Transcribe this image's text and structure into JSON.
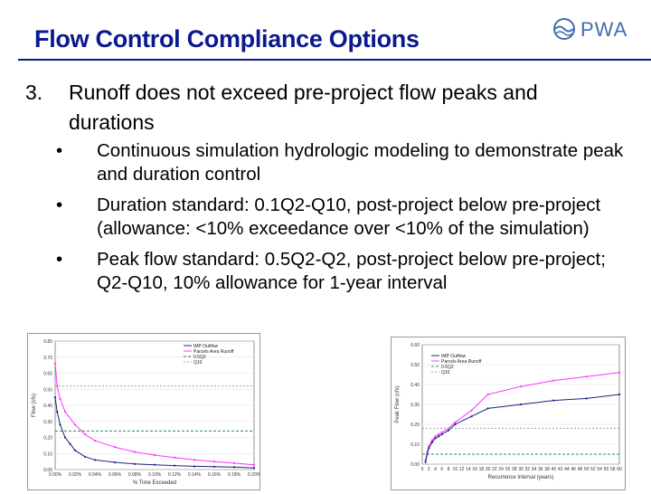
{
  "slide": {
    "title": "Flow Control Compliance Options",
    "logo_text": "PWA",
    "point_number": "3.",
    "point_text": "Runoff does not exceed pre-project flow peaks and durations",
    "bullets": [
      "Continuous simulation hydrologic modeling to demonstrate peak and duration control",
      "Duration standard: 0.1Q2-Q10, post-project below pre-project (allowance: <10% exceedance over <10% of the simulation)",
      "Peak flow standard: 0.5Q2-Q2, post-project below pre-project; Q2-Q10, 10% allowance for 1-year interval"
    ],
    "bullet_symbol": "•"
  },
  "colors": {
    "title": "#0a1a8c",
    "pre": "#ff33ff",
    "post": "#1a237e",
    "q2": "#2e8b57",
    "q10": "#a0a0a0"
  },
  "chart_data": [
    {
      "type": "line",
      "xlabel": "% Time Exceeded",
      "ylabel": "Flow (cfs)",
      "ylim": [
        0,
        0.8
      ],
      "yticks": [
        "0.00",
        "0.10",
        "0.20",
        "0.30",
        "0.40",
        "0.50",
        "0.60",
        "0.70",
        "0.80"
      ],
      "xticks": [
        "0.00%",
        "0.02%",
        "0.04%",
        "0.06%",
        "0.08%",
        "0.10%",
        "0.12%",
        "0.14%",
        "0.16%",
        "0.18%",
        "0.20%"
      ],
      "legend": [
        "IMP Outflow",
        "Parcels Area Runoff",
        "0.5Q2",
        "Q10"
      ],
      "legend_position": "top-right",
      "series": [
        {
          "name": "Parcels Area Runoff",
          "x": [
            0.0,
            0.002,
            0.005,
            0.01,
            0.02,
            0.03,
            0.04,
            0.06,
            0.08,
            0.1,
            0.12,
            0.14,
            0.16,
            0.18,
            0.2
          ],
          "values": [
            0.66,
            0.52,
            0.44,
            0.36,
            0.28,
            0.22,
            0.18,
            0.14,
            0.11,
            0.09,
            0.075,
            0.06,
            0.05,
            0.04,
            0.03
          ]
        },
        {
          "name": "IMP Outflow",
          "x": [
            0.0,
            0.002,
            0.005,
            0.01,
            0.015,
            0.02,
            0.03,
            0.04,
            0.06,
            0.08,
            0.1,
            0.12,
            0.14,
            0.16,
            0.18,
            0.2
          ],
          "values": [
            0.45,
            0.36,
            0.28,
            0.2,
            0.16,
            0.12,
            0.08,
            0.06,
            0.045,
            0.035,
            0.03,
            0.025,
            0.02,
            0.018,
            0.015,
            0.01
          ]
        },
        {
          "name": "0.5Q2",
          "x": [
            0.0,
            0.2
          ],
          "values": [
            0.24,
            0.24
          ]
        },
        {
          "name": "Q10",
          "x": [
            0.0,
            0.2
          ],
          "values": [
            0.52,
            0.52
          ]
        }
      ]
    },
    {
      "type": "line",
      "xlabel": "Recurrence Interval (years)",
      "ylabel": "Peak Flow (cfs)",
      "ylim": [
        0,
        0.6
      ],
      "yticks": [
        "0.00",
        "0.10",
        "0.20",
        "0.30",
        "0.40",
        "0.50",
        "0.60"
      ],
      "xticks": [
        "0",
        "2",
        "4",
        "6",
        "8",
        "10",
        "12",
        "14",
        "16",
        "18",
        "20",
        "22",
        "24",
        "26",
        "28",
        "30",
        "32",
        "34",
        "36",
        "38",
        "40",
        "42",
        "44",
        "46",
        "48",
        "50",
        "52",
        "54",
        "56",
        "58",
        "60"
      ],
      "legend": [
        "IMP Outflow",
        "Parcels Area Runoff",
        "0.5Q2",
        "Q10"
      ],
      "legend_position": "top-left",
      "series": [
        {
          "name": "Parcels Area Runoff",
          "x": [
            1,
            1.5,
            2,
            3,
            4,
            5,
            6,
            8,
            10,
            15,
            20,
            30,
            40,
            50,
            60
          ],
          "values": [
            0.02,
            0.06,
            0.09,
            0.12,
            0.14,
            0.15,
            0.16,
            0.18,
            0.21,
            0.27,
            0.35,
            0.39,
            0.42,
            0.44,
            0.46
          ]
        },
        {
          "name": "IMP Outflow",
          "x": [
            1,
            1.5,
            2,
            3,
            4,
            5,
            6,
            8,
            10,
            15,
            20,
            30,
            40,
            50,
            60
          ],
          "values": [
            0.01,
            0.05,
            0.08,
            0.11,
            0.13,
            0.14,
            0.15,
            0.17,
            0.2,
            0.24,
            0.28,
            0.3,
            0.32,
            0.33,
            0.35
          ]
        },
        {
          "name": "0.5Q2",
          "x": [
            0,
            60
          ],
          "values": [
            0.05,
            0.05
          ]
        },
        {
          "name": "Q10",
          "x": [
            0,
            60
          ],
          "values": [
            0.18,
            0.18
          ]
        }
      ]
    }
  ]
}
